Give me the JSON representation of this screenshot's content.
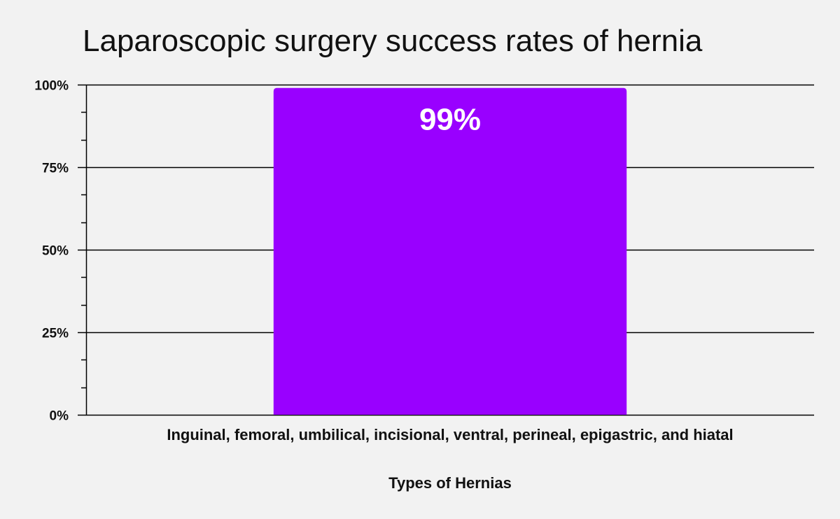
{
  "chart_data": {
    "type": "bar",
    "title": "Laparoscopic surgery success rates of hernia",
    "xlabel": "Types of Hernias",
    "ylabel": "",
    "categories": [
      "Inguinal, femoral, umbilical, incisional, ventral, perineal, epigastric, and hiatal"
    ],
    "values": [
      99
    ],
    "data_labels": [
      "99%"
    ],
    "ylim": [
      0,
      100
    ],
    "y_ticks": [
      0,
      25,
      50,
      75,
      100
    ],
    "y_tick_labels": [
      "0%",
      "25%",
      "50%",
      "75%",
      "100%"
    ],
    "grid": true,
    "legend": "none",
    "colors": {
      "bar": "#9900ff",
      "background": "#f2f2f2",
      "grid": "#000000",
      "text": "#111111"
    }
  }
}
